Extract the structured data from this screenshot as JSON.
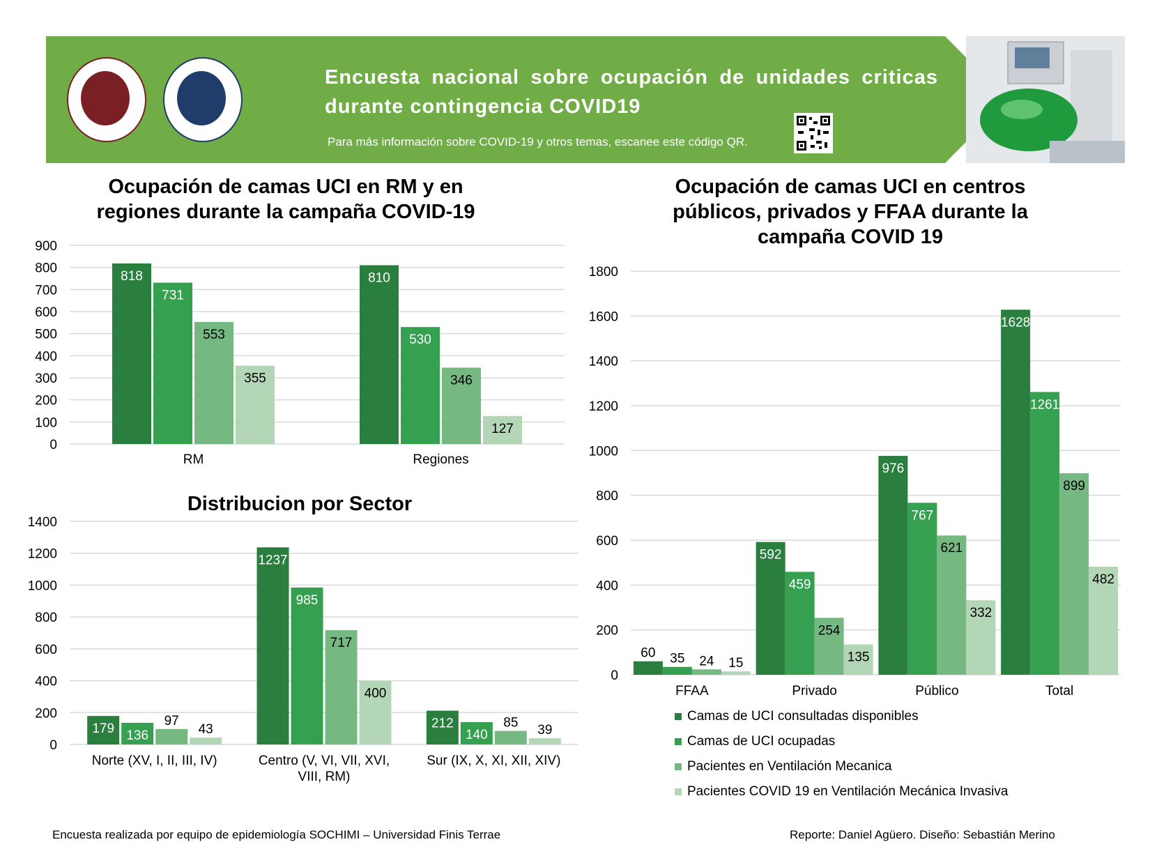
{
  "banner": {
    "title": "Encuesta nacional sobre ocupación de unidades criticas durante contingencia COVID19",
    "subtitle": "Para más información sobre COVID-19 y otros temas, escanee este código QR."
  },
  "colors": {
    "banner_green": "#70ad47",
    "series": [
      "#2a7f3f",
      "#35a050",
      "#76b882",
      "#b3d6b7"
    ],
    "grid": "#d9d9d9"
  },
  "icons": [
    "sochimi-logo",
    "finis-terrae-logo",
    "qr-code",
    "ventilator-photo"
  ],
  "legend": [
    "Camas de UCI consultadas disponibles",
    "Camas de UCI ocupadas",
    "Pacientes en Ventilación Mecanica",
    "Pacientes COVID 19 en Ventilación Mecánica Invasiva"
  ],
  "chart_data": [
    {
      "type": "bar",
      "title": "Ocupación de camas UCI en RM y en regiones durante la campaña COVID-19",
      "categories": [
        "RM",
        "Regiones"
      ],
      "series": [
        {
          "name": "Camas de UCI consultadas disponibles",
          "values": [
            818,
            810
          ]
        },
        {
          "name": "Camas de UCI ocupadas",
          "values": [
            731,
            530
          ]
        },
        {
          "name": "Pacientes en Ventilación Mecanica",
          "values": [
            553,
            346
          ]
        },
        {
          "name": "Pacientes COVID 19 en Ventilación Mecánica Invasiva",
          "values": [
            355,
            127
          ]
        }
      ],
      "ylim": [
        0,
        900
      ],
      "yticks": [
        0,
        100,
        200,
        300,
        400,
        500,
        600,
        700,
        800,
        900
      ],
      "grid": true
    },
    {
      "type": "bar",
      "title": "Distribucion por Sector",
      "categories": [
        "Norte (XV, I, II, III, IV)",
        "Centro (V, VI, VII, XVI, VIII, RM)",
        "Sur (IX, X, XI, XII, XIV)"
      ],
      "series": [
        {
          "name": "Camas de UCI consultadas disponibles",
          "values": [
            179,
            1237,
            212
          ]
        },
        {
          "name": "Camas de UCI ocupadas",
          "values": [
            136,
            985,
            140
          ]
        },
        {
          "name": "Pacientes en Ventilación Mecanica",
          "values": [
            97,
            717,
            85
          ]
        },
        {
          "name": "Pacientes COVID 19 en Ventilación Mecánica Invasiva",
          "values": [
            43,
            400,
            39
          ]
        }
      ],
      "ylim": [
        0,
        1400
      ],
      "yticks": [
        0,
        200,
        400,
        600,
        800,
        1000,
        1200,
        1400
      ],
      "grid": true
    },
    {
      "type": "bar",
      "title": "Ocupación de camas UCI en centros públicos, privados y FFAA durante la campaña COVID 19",
      "categories": [
        "FFAA",
        "Privado",
        "Público",
        "Total"
      ],
      "series": [
        {
          "name": "Camas de UCI consultadas disponibles",
          "values": [
            60,
            592,
            976,
            1628
          ]
        },
        {
          "name": "Camas de UCI ocupadas",
          "values": [
            35,
            459,
            767,
            1261
          ]
        },
        {
          "name": "Pacientes en Ventilación Mecanica",
          "values": [
            24,
            254,
            621,
            899
          ]
        },
        {
          "name": "Pacientes COVID 19 en Ventilación Mecánica Invasiva",
          "values": [
            15,
            135,
            332,
            482
          ]
        }
      ],
      "ylim": [
        0,
        1800
      ],
      "yticks": [
        0,
        200,
        400,
        600,
        800,
        1000,
        1200,
        1400,
        1600,
        1800
      ],
      "grid": true,
      "legend_position": "bottom"
    }
  ],
  "footer": {
    "left": "Encuesta realizada por equipo de epidemiología SOCHIMI – Universidad Finis Terrae",
    "right": "Reporte: Daniel Agüero. Diseño: Sebastián Merino"
  }
}
